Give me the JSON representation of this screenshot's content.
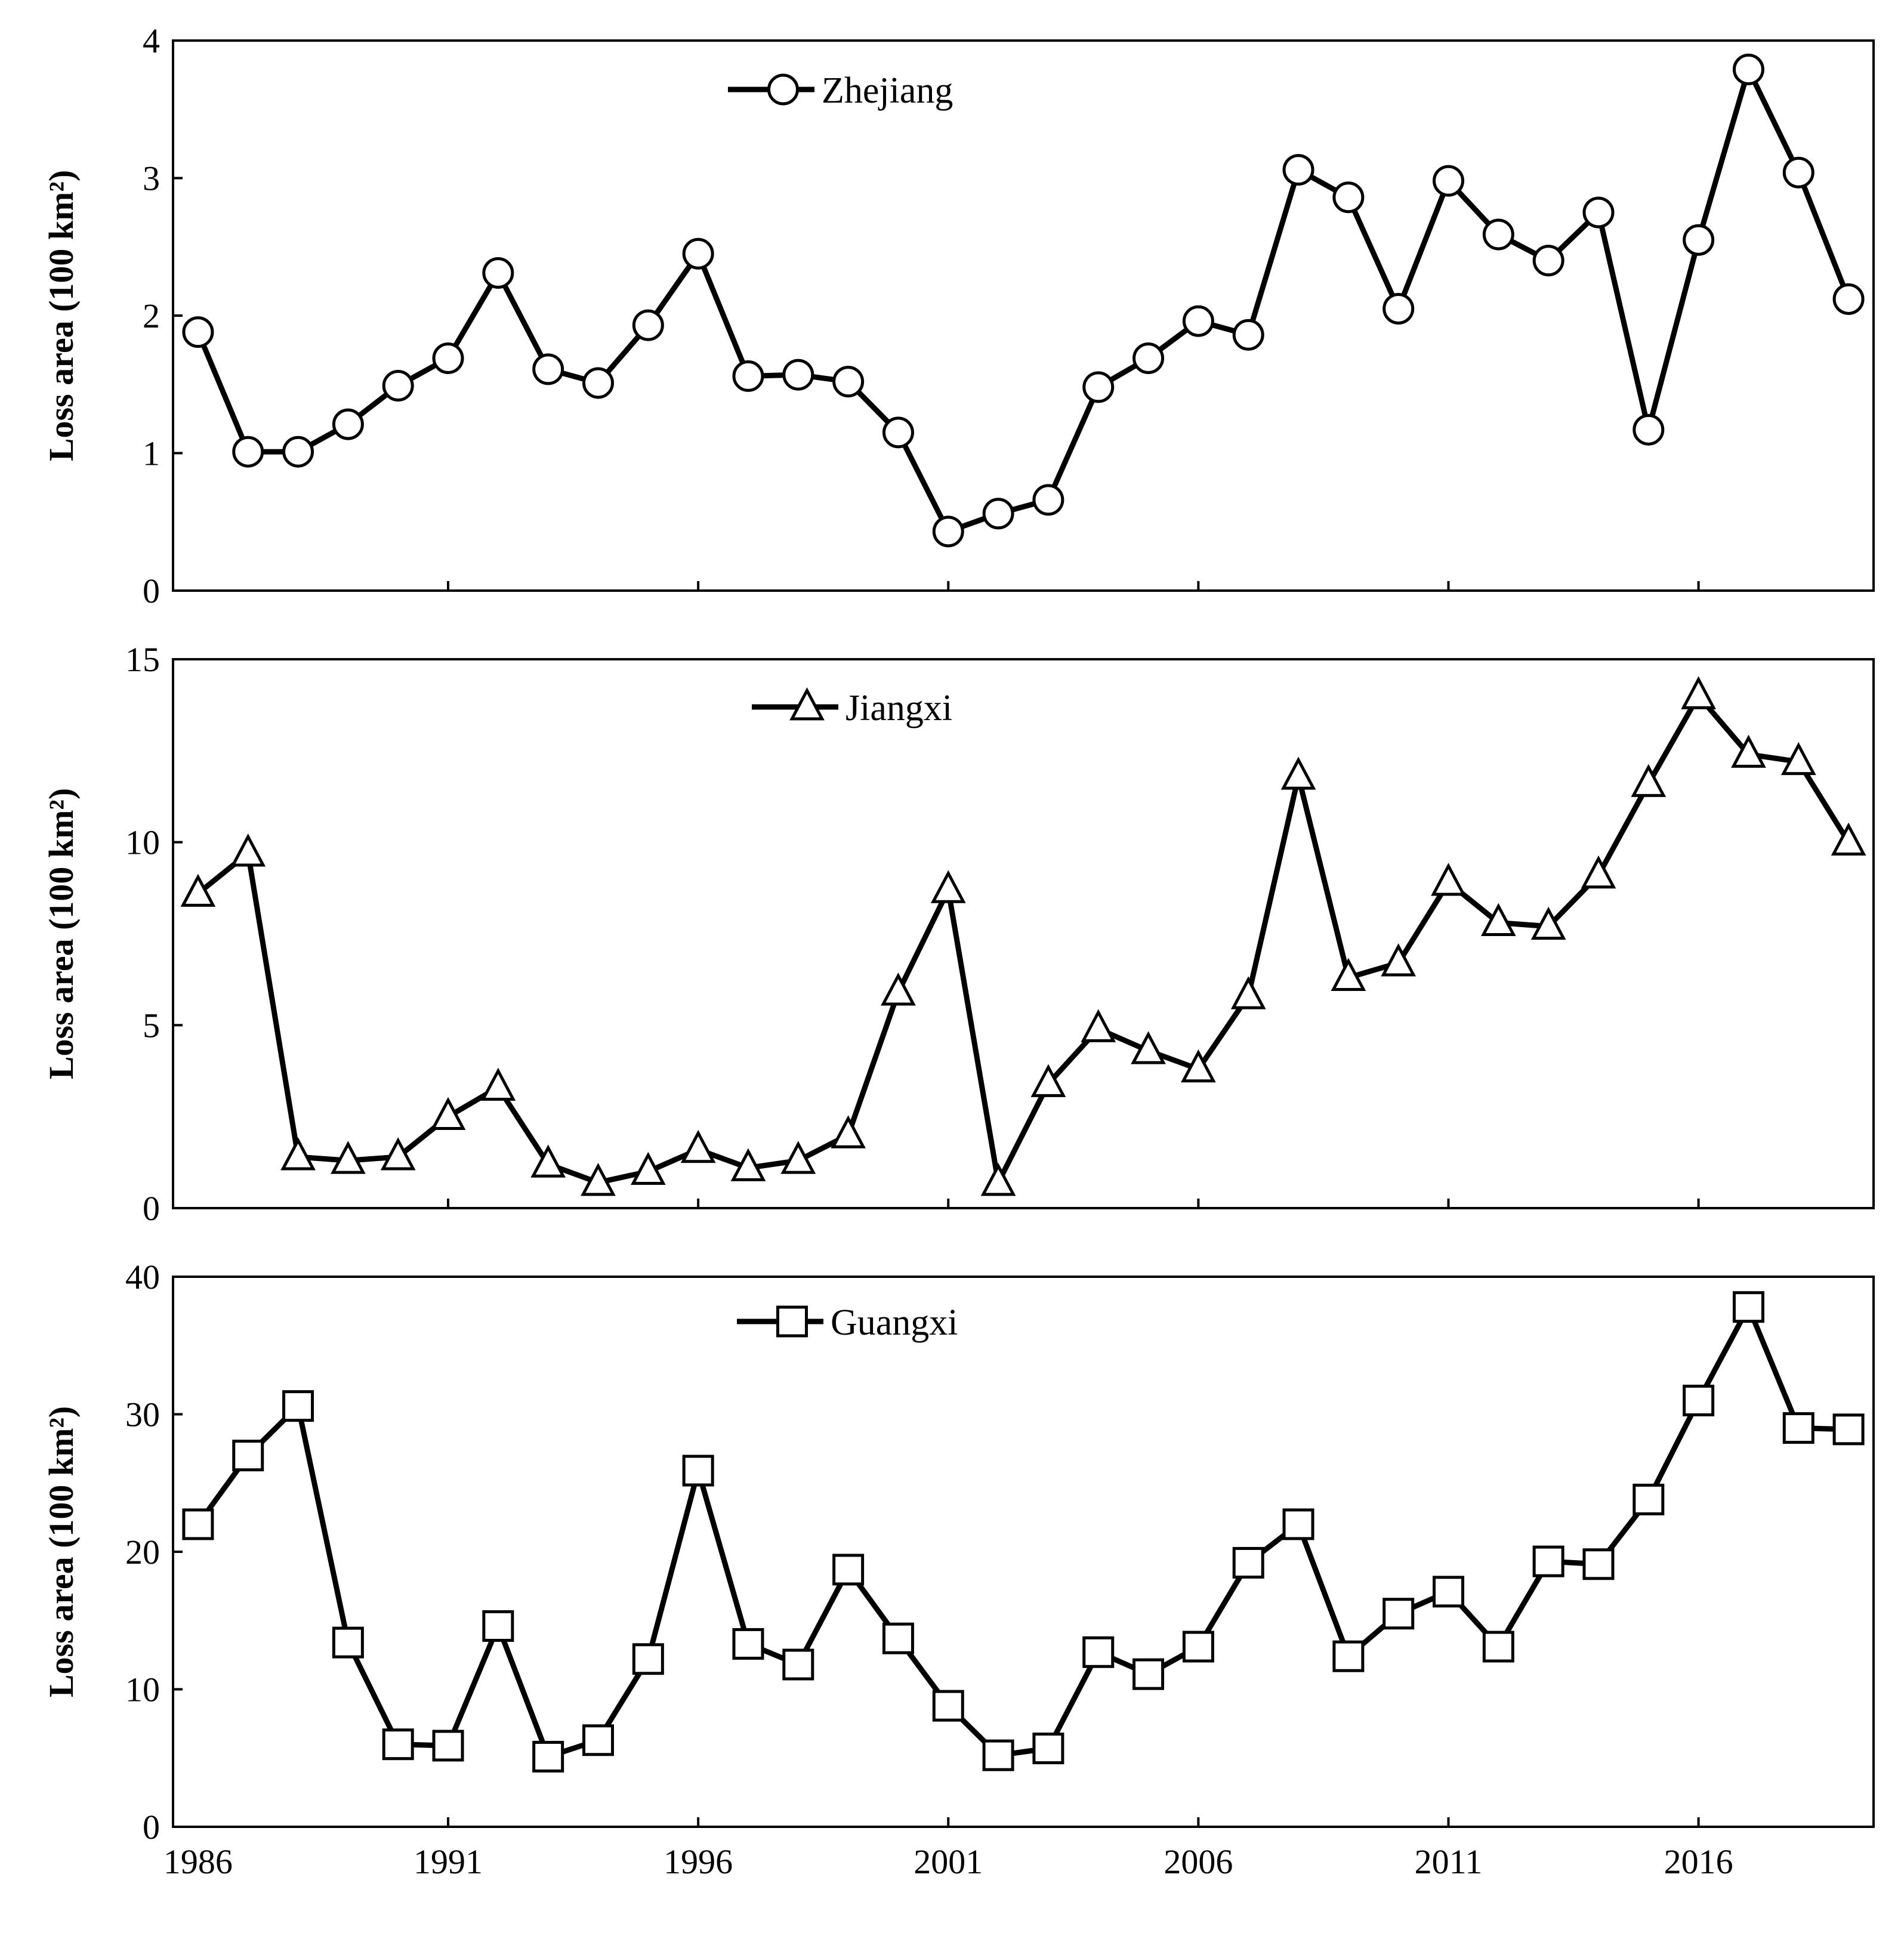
{
  "chart_data": [
    {
      "type": "line",
      "series": [
        {
          "name": "Zhejiang",
          "marker": "circle",
          "x": [
            1986,
            1987,
            1988,
            1989,
            1990,
            1991,
            1992,
            1993,
            1994,
            1995,
            1996,
            1997,
            1998,
            1999,
            2000,
            2001,
            2002,
            2003,
            2004,
            2005,
            2006,
            2007,
            2008,
            2009,
            2010,
            2011,
            2012,
            2013,
            2014,
            2015,
            2016,
            2017,
            2018,
            2019
          ],
          "values": [
            1.88,
            1.01,
            1.01,
            1.21,
            1.49,
            1.69,
            2.31,
            1.61,
            1.51,
            1.93,
            2.45,
            1.56,
            1.57,
            1.52,
            1.15,
            0.43,
            0.56,
            0.66,
            1.48,
            1.69,
            1.96,
            1.86,
            3.06,
            2.86,
            2.05,
            2.98,
            2.59,
            2.4,
            2.75,
            1.17,
            2.55,
            3.79,
            3.04,
            2.12
          ]
        }
      ],
      "ylabel": "Loss area (100 km²)",
      "ylim": [
        0,
        4
      ],
      "yticks": [
        "0",
        "1",
        "2",
        "3",
        "4"
      ],
      "xlim": [
        1985.5,
        2019.5
      ],
      "legend_position": "top-center"
    },
    {
      "type": "line",
      "series": [
        {
          "name": "Jiangxi",
          "marker": "triangle",
          "x": [
            1986,
            1987,
            1988,
            1989,
            1990,
            1991,
            1992,
            1993,
            1994,
            1995,
            1996,
            1997,
            1998,
            1999,
            2000,
            2001,
            2002,
            2003,
            2004,
            2005,
            2006,
            2007,
            2008,
            2009,
            2010,
            2011,
            2012,
            2013,
            2014,
            2015,
            2016,
            2017,
            2018,
            2019
          ],
          "values": [
            8.6,
            9.7,
            1.4,
            1.3,
            1.4,
            2.5,
            3.3,
            1.2,
            0.7,
            1.0,
            1.6,
            1.1,
            1.3,
            2.0,
            5.9,
            8.7,
            0.7,
            3.4,
            4.9,
            4.3,
            3.8,
            5.8,
            11.8,
            6.3,
            6.7,
            8.9,
            7.8,
            7.7,
            9.1,
            11.6,
            14.0,
            12.4,
            12.2,
            10.0
          ]
        }
      ],
      "ylabel": "Loss area (100 km²)",
      "ylim": [
        0,
        15
      ],
      "yticks": [
        "0",
        "5",
        "10",
        "15"
      ],
      "xlim": [
        1985.5,
        2019.5
      ],
      "legend_position": "top-center"
    },
    {
      "type": "line",
      "series": [
        {
          "name": "Guangxi",
          "marker": "square",
          "x": [
            1986,
            1987,
            1988,
            1989,
            1990,
            1991,
            1992,
            1993,
            1994,
            1995,
            1996,
            1997,
            1998,
            1999,
            2000,
            2001,
            2002,
            2003,
            2004,
            2005,
            2006,
            2007,
            2008,
            2009,
            2010,
            2011,
            2012,
            2013,
            2014,
            2015,
            2016,
            2017,
            2018,
            2019
          ],
          "values": [
            22.0,
            27.0,
            30.6,
            13.4,
            6.0,
            5.9,
            14.6,
            5.1,
            6.3,
            12.2,
            25.9,
            13.3,
            11.8,
            18.7,
            13.7,
            8.8,
            5.2,
            5.7,
            12.7,
            11.1,
            13.1,
            19.2,
            22.0,
            12.4,
            15.5,
            17.1,
            13.1,
            19.3,
            19.1,
            23.8,
            31.0,
            37.8,
            29.0,
            28.9
          ]
        }
      ],
      "ylabel": "Loss area (100 km²)",
      "ylim": [
        0,
        40
      ],
      "yticks": [
        "0",
        "10",
        "20",
        "30",
        "40"
      ],
      "xlim": [
        1985.5,
        2019.5
      ],
      "xticks": [
        "1986",
        "1991",
        "1996",
        "2001",
        "2006",
        "2011",
        "2016"
      ],
      "legend_position": "top-center"
    }
  ]
}
